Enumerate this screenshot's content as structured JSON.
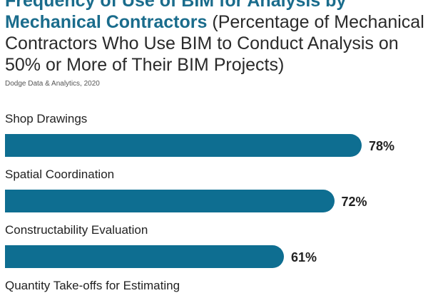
{
  "chart_data": {
    "type": "bar",
    "orientation": "horizontal",
    "title_line1": "Frequency of Use of BIM for Analysis by",
    "title_bold": "Mechanical Contractors",
    "subtitle": "(Percentage of Mechanical Contractors Who Use BIM to Conduct Analysis on 50% or More of Their BIM Projects)",
    "source": "Dodge Data & Analytics, 2020",
    "categories": [
      "Shop Drawings",
      "Spatial Coordination",
      "Constructability Evaluation",
      "Quantity Take-offs for Estimating"
    ],
    "values": [
      78,
      72,
      61,
      null
    ],
    "value_labels": [
      "78%",
      "72%",
      "61%",
      ""
    ],
    "xlim": [
      0,
      100
    ],
    "grid": false,
    "bar_color": "#0e6e91",
    "title_color": "#1a6c8c"
  }
}
